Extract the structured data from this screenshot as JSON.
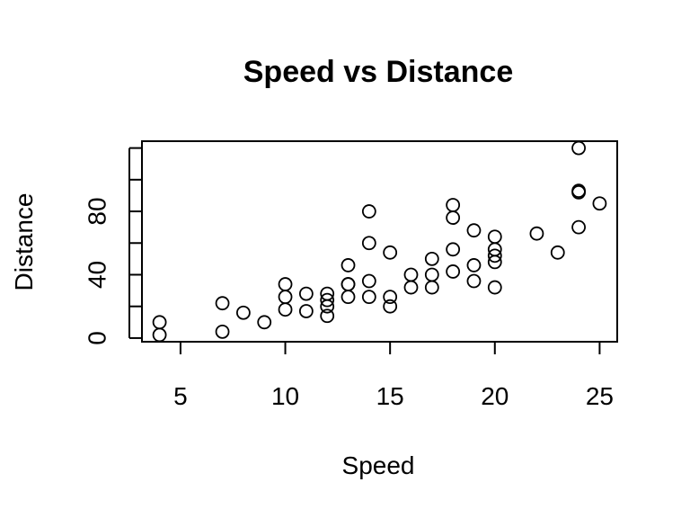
{
  "chart_data": {
    "type": "scatter",
    "title": "Speed vs Distance",
    "xlabel": "Speed",
    "ylabel": "Distance",
    "xlim": [
      3.16,
      25.84
    ],
    "ylim": [
      -2.32,
      124.32
    ],
    "xticks": [
      5,
      10,
      15,
      20,
      25
    ],
    "yticks": [
      0,
      20,
      40,
      60,
      80,
      100,
      120
    ],
    "ytick_labels": [
      "0",
      "",
      "40",
      "",
      "80",
      "",
      ""
    ],
    "grid": false,
    "points": [
      {
        "x": 4,
        "y": 2
      },
      {
        "x": 4,
        "y": 10
      },
      {
        "x": 7,
        "y": 4
      },
      {
        "x": 7,
        "y": 22
      },
      {
        "x": 8,
        "y": 16
      },
      {
        "x": 9,
        "y": 10
      },
      {
        "x": 10,
        "y": 18
      },
      {
        "x": 10,
        "y": 26
      },
      {
        "x": 10,
        "y": 34
      },
      {
        "x": 11,
        "y": 17
      },
      {
        "x": 11,
        "y": 28
      },
      {
        "x": 12,
        "y": 14
      },
      {
        "x": 12,
        "y": 20
      },
      {
        "x": 12,
        "y": 24
      },
      {
        "x": 12,
        "y": 28
      },
      {
        "x": 13,
        "y": 26
      },
      {
        "x": 13,
        "y": 34
      },
      {
        "x": 13,
        "y": 34
      },
      {
        "x": 13,
        "y": 46
      },
      {
        "x": 14,
        "y": 26
      },
      {
        "x": 14,
        "y": 36
      },
      {
        "x": 14,
        "y": 60
      },
      {
        "x": 14,
        "y": 80
      },
      {
        "x": 15,
        "y": 20
      },
      {
        "x": 15,
        "y": 26
      },
      {
        "x": 15,
        "y": 54
      },
      {
        "x": 16,
        "y": 32
      },
      {
        "x": 16,
        "y": 40
      },
      {
        "x": 17,
        "y": 32
      },
      {
        "x": 17,
        "y": 40
      },
      {
        "x": 17,
        "y": 50
      },
      {
        "x": 18,
        "y": 42
      },
      {
        "x": 18,
        "y": 56
      },
      {
        "x": 18,
        "y": 76
      },
      {
        "x": 18,
        "y": 84
      },
      {
        "x": 19,
        "y": 36
      },
      {
        "x": 19,
        "y": 46
      },
      {
        "x": 19,
        "y": 68
      },
      {
        "x": 20,
        "y": 32
      },
      {
        "x": 20,
        "y": 48
      },
      {
        "x": 20,
        "y": 52
      },
      {
        "x": 20,
        "y": 56
      },
      {
        "x": 20,
        "y": 64
      },
      {
        "x": 22,
        "y": 66
      },
      {
        "x": 23,
        "y": 54
      },
      {
        "x": 24,
        "y": 70
      },
      {
        "x": 24,
        "y": 92
      },
      {
        "x": 24,
        "y": 93
      },
      {
        "x": 24,
        "y": 120
      },
      {
        "x": 25,
        "y": 85
      }
    ]
  }
}
